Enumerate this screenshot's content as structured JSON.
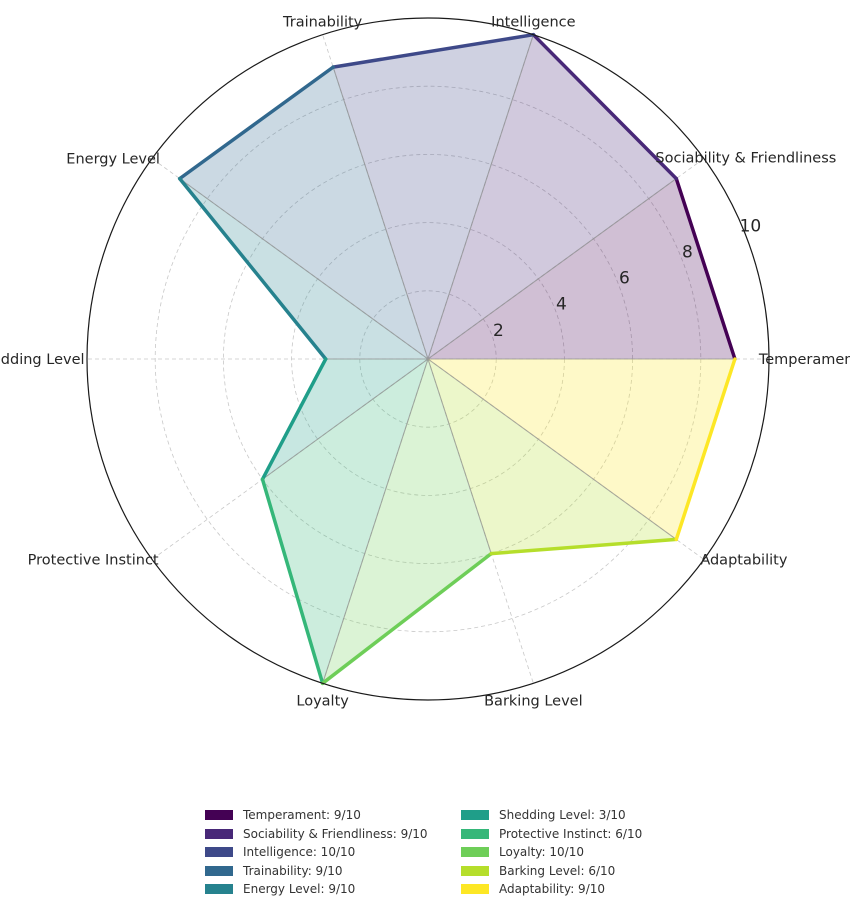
{
  "chart_data": {
    "type": "radar",
    "title": "",
    "max_value": 10,
    "rticks": [
      2,
      4,
      6,
      8,
      10
    ],
    "categories": [
      "Temperament",
      "Sociability & Friendliness",
      "Intelligence",
      "Trainability",
      "Energy Level",
      "Shedding Level",
      "Protective Instinct",
      "Loyalty",
      "Barking Level",
      "Adaptability"
    ],
    "values": [
      9,
      9,
      10,
      9,
      9,
      3,
      6,
      10,
      6,
      9
    ],
    "colors": [
      "#440154",
      "#482878",
      "#3e4989",
      "#31688e",
      "#26828e",
      "#1f9e89",
      "#35b779",
      "#6ece58",
      "#b5de2b",
      "#fde725"
    ],
    "legend": {
      "position": "bottom",
      "columns": 2,
      "entries": [
        "Temperament: 9/10",
        "Sociability & Friendliness: 9/10",
        "Intelligence: 10/10",
        "Trainability: 9/10",
        "Energy Level: 9/10",
        "Shedding Level: 3/10",
        "Protective Instinct: 6/10",
        "Loyalty: 10/10",
        "Barking Level: 6/10",
        "Adaptability: 9/10"
      ]
    }
  }
}
